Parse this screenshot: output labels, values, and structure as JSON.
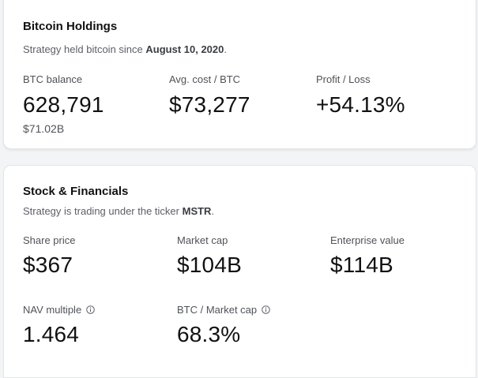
{
  "holdings": {
    "title": "Bitcoin Holdings",
    "subtitle_prefix": "Strategy held bitcoin since ",
    "subtitle_date": "August 10, 2020",
    "subtitle_suffix": ".",
    "btc_balance": {
      "label": "BTC balance",
      "value": "628,791",
      "subvalue": "$71.02B"
    },
    "avg_cost": {
      "label": "Avg. cost / BTC",
      "value": "$73,277"
    },
    "profit_loss": {
      "label": "Profit / Loss",
      "value": "+54.13%"
    }
  },
  "stock": {
    "title": "Stock & Financials",
    "subtitle_prefix": "Strategy is trading under the ticker ",
    "ticker": "MSTR",
    "subtitle_suffix": ".",
    "share_price": {
      "label": "Share price",
      "value": "$367"
    },
    "market_cap": {
      "label": "Market cap",
      "value": "$104B"
    },
    "enterprise_value": {
      "label": "Enterprise value",
      "value": "$114B"
    },
    "nav_multiple": {
      "label": "NAV multiple",
      "value": "1.464",
      "icon": "info-icon"
    },
    "btc_market_cap": {
      "label": "BTC / Market cap",
      "value": "68.3%",
      "icon": "info-icon"
    }
  }
}
